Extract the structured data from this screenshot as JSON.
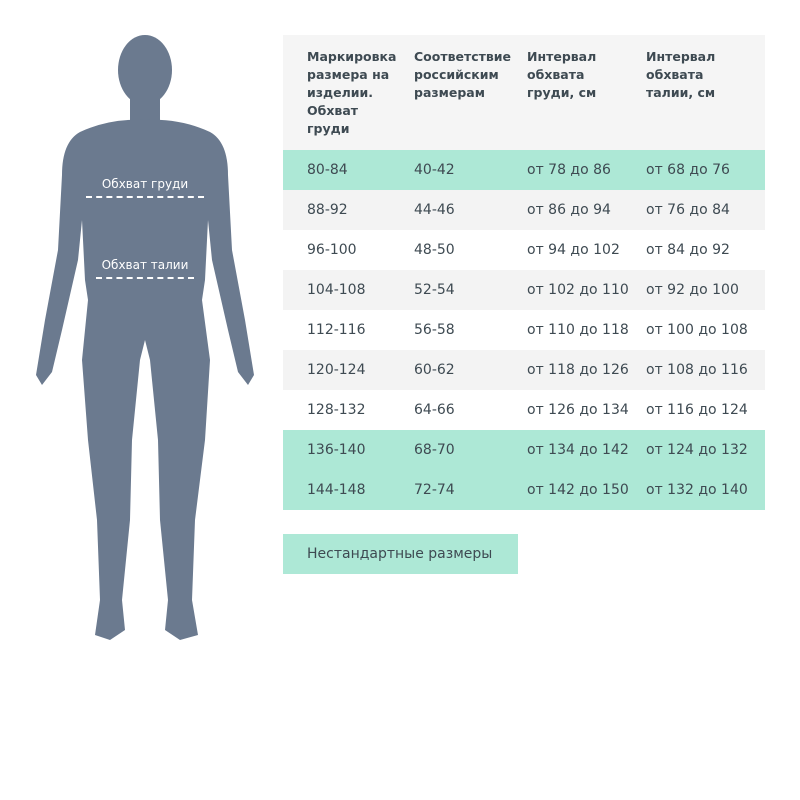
{
  "figure": {
    "chest_label": "Обхват груди",
    "waist_label": "Обхват талии",
    "color": "#6b7a8f"
  },
  "table": {
    "headers": [
      "Маркировка размера на изделии. Обхват груди",
      "Соответствие российским размерам",
      "Интервал обхвата груди, см",
      "Интервал обхвата талии, см"
    ],
    "rows": [
      {
        "cells": [
          "80-84",
          "40-42",
          "от 78 до 86",
          "от 68 до 76"
        ],
        "style": "green"
      },
      {
        "cells": [
          "88-92",
          "44-46",
          "от 86 до 94",
          "от 76 до 84"
        ],
        "style": "gray"
      },
      {
        "cells": [
          "96-100",
          "48-50",
          "от 94 до 102",
          "от 84 до 92"
        ],
        "style": "white"
      },
      {
        "cells": [
          "104-108",
          "52-54",
          "от 102 до 110",
          "от 92 до 100"
        ],
        "style": "gray"
      },
      {
        "cells": [
          "112-116",
          "56-58",
          "от 110 до 118",
          "от 100 до 108"
        ],
        "style": "white"
      },
      {
        "cells": [
          "120-124",
          "60-62",
          "от 118 до 126",
          "от 108 до 116"
        ],
        "style": "gray"
      },
      {
        "cells": [
          "128-132",
          "64-66",
          "от 126 до 134",
          "от 116 до 124"
        ],
        "style": "white"
      },
      {
        "cells": [
          "136-140",
          "68-70",
          "от 134 до 142",
          "от 124 до 132"
        ],
        "style": "green"
      },
      {
        "cells": [
          "144-148",
          "72-74",
          "от 142 до 150",
          "от 132 до 140"
        ],
        "style": "green"
      }
    ]
  },
  "button": {
    "label": "Нестандартные размеры"
  },
  "colors": {
    "accent": "#ade8d6",
    "header_bg": "#f5f5f5"
  }
}
